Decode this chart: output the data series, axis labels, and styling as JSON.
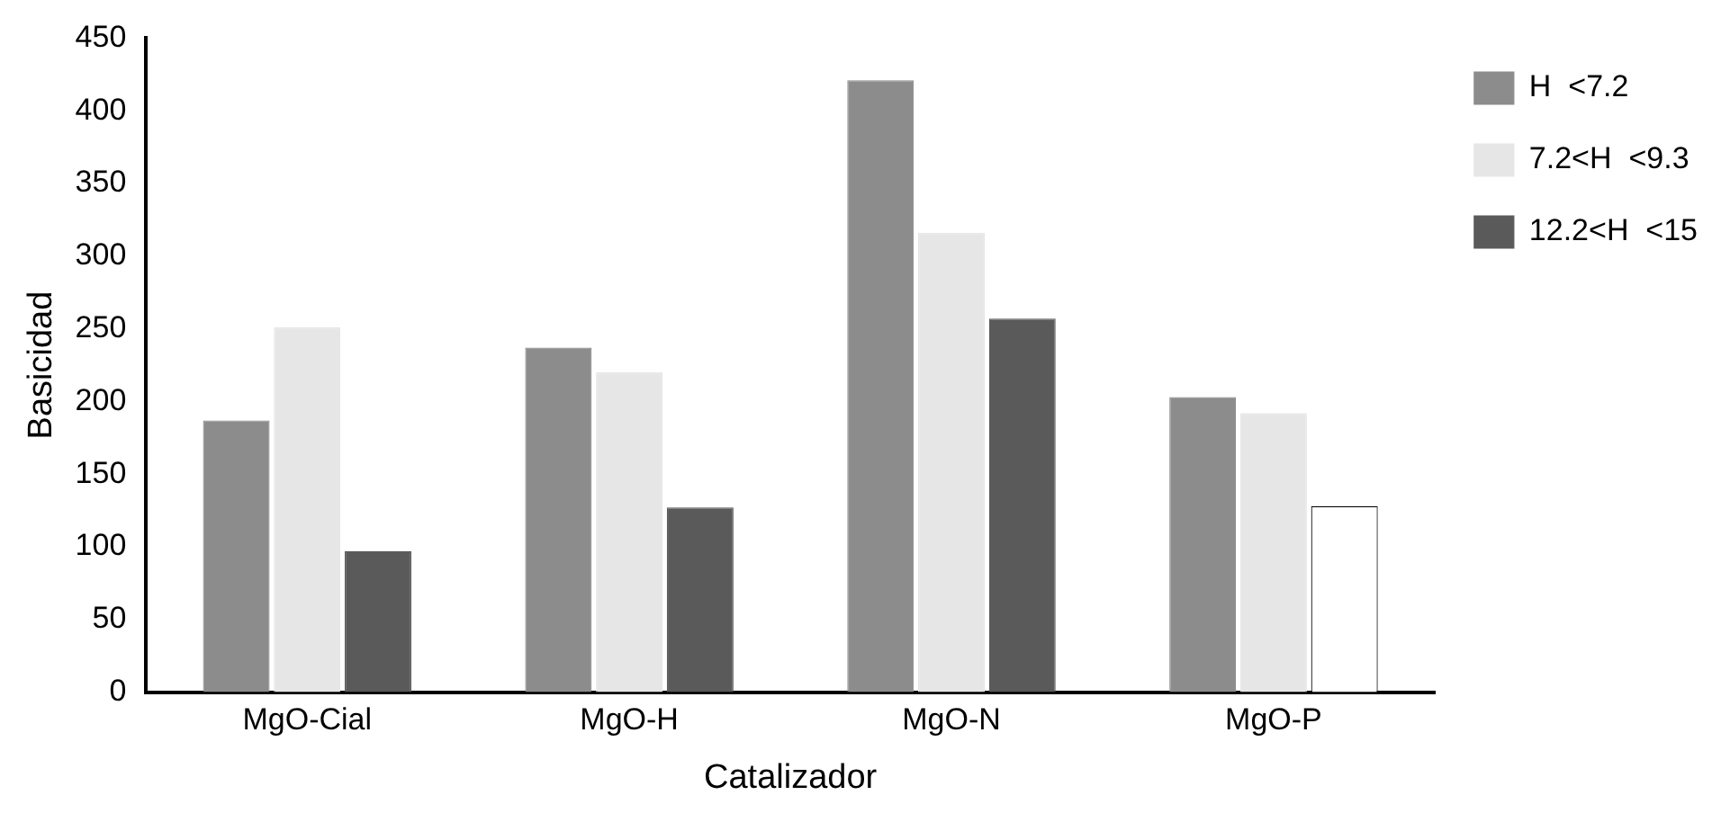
{
  "chart_data": {
    "type": "bar",
    "xlabel": "Catalizador",
    "ylabel": "Basicidad",
    "categories": [
      "MgO-Cial",
      "MgO-H",
      "MgO-N",
      "MgO-P"
    ],
    "series": [
      {
        "name": "H  <7.2",
        "color": "#8c8c8c",
        "values": [
          187,
          237,
          421,
          203
        ]
      },
      {
        "name": "7.2<H  <9.3",
        "color": "#e6e6e6",
        "values": [
          251,
          220,
          316,
          192
        ]
      },
      {
        "name": "12.2<H  <15",
        "color": "#5a5a5a",
        "colors": [
          "#5a5a5a",
          "#5a5a5a",
          "#5a5a5a",
          "#ffffff"
        ],
        "values": [
          97,
          127,
          257,
          128
        ]
      }
    ],
    "ylim": [
      0,
      450
    ],
    "yticks": [
      0,
      50,
      100,
      150,
      200,
      250,
      300,
      350,
      400,
      450
    ],
    "grid": false,
    "legend": "top right"
  }
}
